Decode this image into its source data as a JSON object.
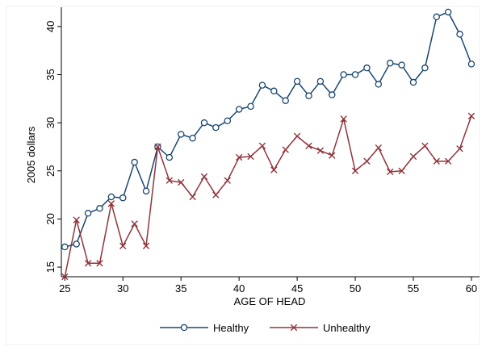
{
  "chart_data": {
    "type": "line",
    "xlabel": "AGE OF HEAD",
    "ylabel": "2005 dollars",
    "xlim": [
      24.7,
      60.7
    ],
    "ylim": [
      14,
      42
    ],
    "xticks": [
      25,
      30,
      35,
      40,
      45,
      50,
      55,
      60
    ],
    "yticks": [
      15,
      20,
      25,
      30,
      35,
      40
    ],
    "grid": false,
    "legend_position": "bottom",
    "x": [
      25,
      26,
      27,
      28,
      29,
      30,
      31,
      32,
      33,
      34,
      35,
      36,
      37,
      38,
      39,
      40,
      41,
      42,
      43,
      44,
      45,
      46,
      47,
      48,
      49,
      50,
      51,
      52,
      53,
      54,
      55,
      56,
      57,
      58,
      59,
      60
    ],
    "series": [
      {
        "name": "Healthy",
        "color": "#1a476f",
        "marker": "circle",
        "values": [
          17.1,
          17.4,
          20.6,
          21.1,
          22.3,
          22.2,
          25.9,
          22.9,
          27.5,
          26.4,
          28.8,
          28.4,
          30.0,
          29.5,
          30.2,
          31.4,
          31.7,
          33.9,
          33.3,
          32.3,
          34.3,
          32.8,
          34.3,
          32.9,
          35.0,
          35.0,
          35.7,
          34.0,
          36.2,
          36.0,
          34.2,
          35.7,
          41.0,
          41.5,
          39.2,
          36.1
        ]
      },
      {
        "name": "Unhealthy",
        "color": "#90353b",
        "marker": "x",
        "values": [
          14.0,
          19.9,
          15.4,
          15.4,
          21.6,
          17.2,
          19.5,
          17.2,
          27.5,
          24.0,
          23.8,
          22.3,
          24.4,
          22.5,
          24.0,
          26.4,
          26.5,
          27.6,
          25.1,
          27.2,
          28.6,
          27.6,
          27.1,
          26.6,
          30.4,
          25.0,
          26.0,
          27.4,
          24.9,
          25.0,
          26.5,
          27.6,
          26.0,
          26.0,
          27.3,
          30.7
        ]
      }
    ]
  }
}
